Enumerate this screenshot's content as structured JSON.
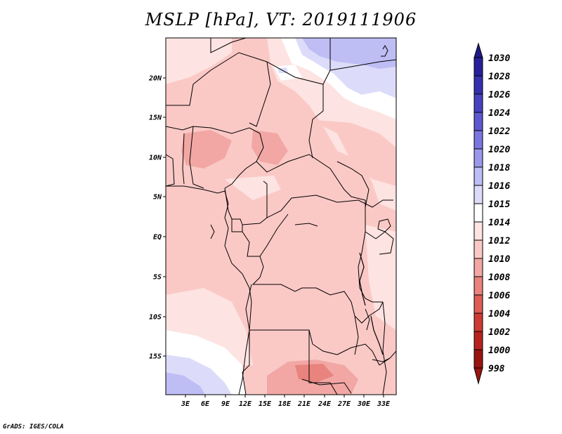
{
  "title": "MSLP [hPa], VT: 2019111906",
  "credit": "GrADS: IGES/COLA",
  "map": {
    "lat_ticks": [
      "20N",
      "15N",
      "10N",
      "5N",
      "EQ",
      "5S",
      "10S",
      "15S"
    ],
    "lon_ticks": [
      "3E",
      "6E",
      "9E",
      "12E",
      "15E",
      "18E",
      "21E",
      "24E",
      "27E",
      "30E",
      "33E"
    ],
    "lon_range_deg": [
      0,
      35
    ],
    "lat_range_deg": [
      -20,
      25
    ]
  },
  "colorbar": {
    "levels": [
      {
        "label": "1030",
        "color": "#1e1a8a"
      },
      {
        "label": "1028",
        "color": "#27209a"
      },
      {
        "label": "1026",
        "color": "#3530ae"
      },
      {
        "label": "1024",
        "color": "#4841c0"
      },
      {
        "label": "1022",
        "color": "#5d58d0"
      },
      {
        "label": "1020",
        "color": "#7a76e0"
      },
      {
        "label": "1018",
        "color": "#9b98ec"
      },
      {
        "label": "1016",
        "color": "#bebdf4"
      },
      {
        "label": "1015",
        "color": "#dcdcfa"
      },
      {
        "label": "1014",
        "color": "#ffffff"
      },
      {
        "label": "1012",
        "color": "#fde3e1"
      },
      {
        "label": "1010",
        "color": "#fac9c6"
      },
      {
        "label": "1008",
        "color": "#f2a7a4"
      },
      {
        "label": "1006",
        "color": "#e8837e"
      },
      {
        "label": "1004",
        "color": "#dd5c55"
      },
      {
        "label": "1002",
        "color": "#cd3a34"
      },
      {
        "label": "1000",
        "color": "#b8221e"
      },
      {
        "label": "998",
        "color": "#9a1410"
      }
    ]
  }
}
